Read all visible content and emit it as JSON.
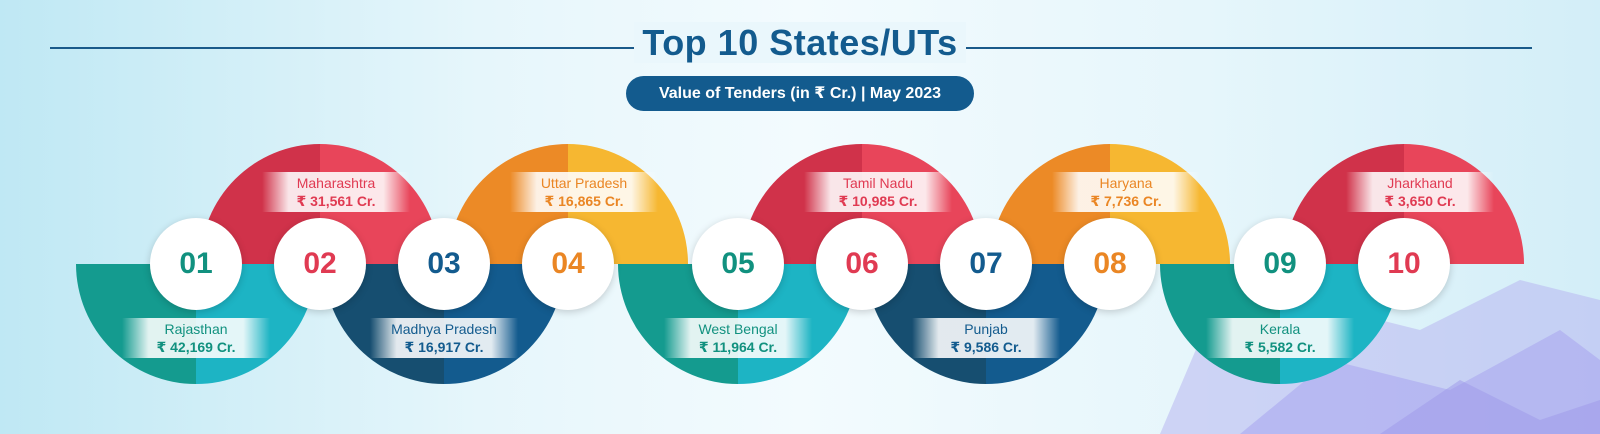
{
  "header": {
    "title": "Top 10 States/UTs",
    "subtitle": "Value of Tenders (in ₹ Cr.) | May 2023"
  },
  "colors": {
    "red": "#e8455a",
    "red_dark": "#d0324a",
    "orange": "#f6b731",
    "orange_dark": "#ec8a26",
    "teal": "#1db4c4",
    "teal_dark": "#149b8f",
    "navy": "#135b8e",
    "navy_dark": "#164e70"
  },
  "items": [
    {
      "rank": "01",
      "name": "Rajasthan",
      "value": "₹ 42,169 Cr."
    },
    {
      "rank": "02",
      "name": "Maharashtra",
      "value": "₹ 31,561 Cr."
    },
    {
      "rank": "03",
      "name": "Madhya Pradesh",
      "value": "₹ 16,917 Cr."
    },
    {
      "rank": "04",
      "name": "Uttar Pradesh",
      "value": "₹ 16,865 Cr."
    },
    {
      "rank": "05",
      "name": "West Bengal",
      "value": "₹ 11,964 Cr."
    },
    {
      "rank": "06",
      "name": "Tamil Nadu",
      "value": "₹ 10,985 Cr."
    },
    {
      "rank": "07",
      "name": "Punjab",
      "value": "₹ 9,586 Cr."
    },
    {
      "rank": "08",
      "name": "Haryana",
      "value": "₹ 7,736 Cr."
    },
    {
      "rank": "09",
      "name": "Kerala",
      "value": "₹ 5,582 Cr."
    },
    {
      "rank": "10",
      "name": "Jharkhand",
      "value": "₹ 3,650 Cr."
    }
  ]
}
